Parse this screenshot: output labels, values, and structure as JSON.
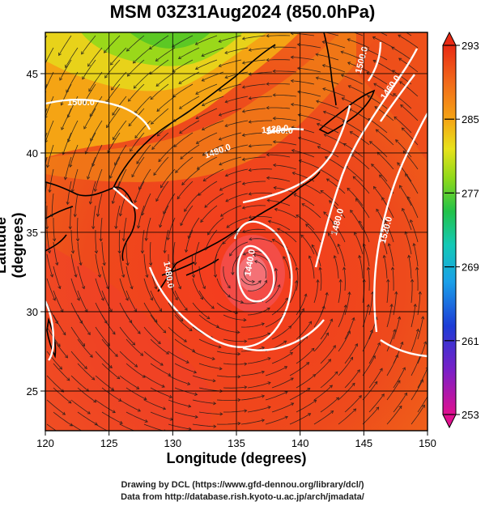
{
  "title": "MSM 03Z31Aug2024 (850.0hPa)",
  "xlabel": "Longitude (degrees)",
  "ylabel": "Latitude  (degrees)",
  "credits": [
    "Drawing by DCL (https://www.gfd-dennou.org/library/dcl/)",
    "Data from http://database.rish.kyoto-u.ac.jp/arch/jmadata/"
  ],
  "map": {
    "lon_range": [
      120,
      150
    ],
    "lat_range": [
      22.5,
      47.6
    ],
    "lon_ticks": [
      "120",
      "125",
      "130",
      "135",
      "140",
      "145",
      "150"
    ],
    "lat_ticks": [
      "25",
      "30",
      "35",
      "40",
      "45"
    ],
    "contour_labels": [
      "1500.0",
      "1440.0",
      "1480.0",
      "1460.0",
      "1480.0",
      "1420.0",
      "1500.0",
      "1460.0",
      "1520.0",
      "1480.0"
    ]
  },
  "colorbar": {
    "ticks": [
      "293",
      "285",
      "277",
      "269",
      "261",
      "253"
    ],
    "colors": [
      "#e0108f",
      "#7a1fc7",
      "#1d3cd6",
      "#1aa0e8",
      "#14c9b5",
      "#22c24a",
      "#8fd91a",
      "#e8e21a",
      "#f5a414",
      "#f26a1a",
      "#e82a14"
    ]
  }
}
